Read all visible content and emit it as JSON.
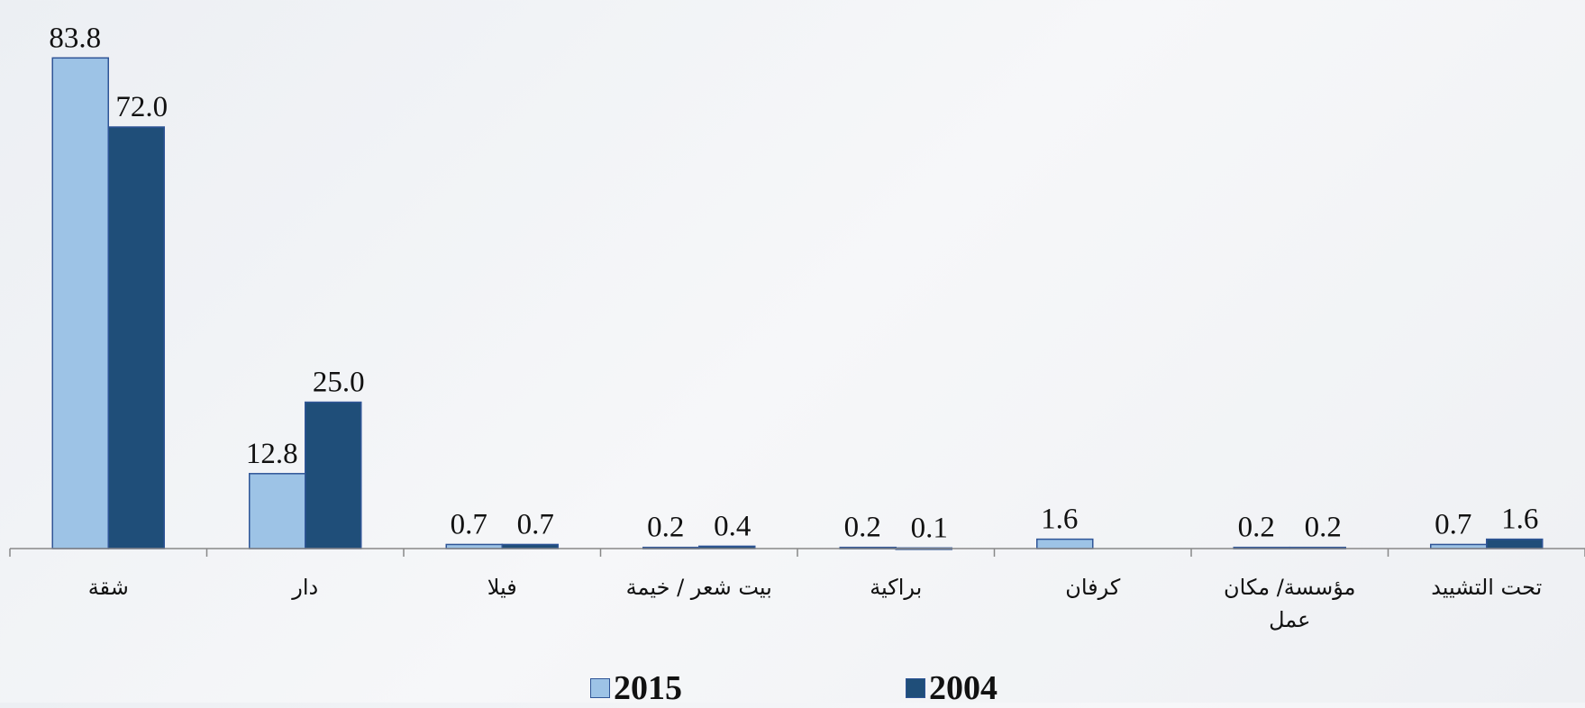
{
  "chart_data": {
    "type": "bar",
    "categories": [
      "شقة",
      "دار",
      "فيلا",
      "بيت شعر / خيمة",
      "براكية",
      "كرفان",
      "مؤسسة/ مكان عمل",
      "تحت التشييد"
    ],
    "series": [
      {
        "name": "2015",
        "color": "#9dc3e6",
        "values": [
          83.8,
          12.8,
          0.7,
          0.2,
          0.2,
          1.6,
          0.2,
          0.7
        ],
        "value_labels": [
          "83.8",
          "12.8",
          "0.7",
          "0.2",
          "0.2",
          "1.6",
          "0.2",
          "0.7"
        ]
      },
      {
        "name": "2004",
        "color": "#1f4e79",
        "values": [
          72.0,
          25.0,
          0.7,
          0.4,
          0.1,
          null,
          0.2,
          1.6
        ],
        "value_labels": [
          "72.0",
          "25.0",
          "0.7",
          "0.4",
          "0.1",
          null,
          "0.2",
          "1.6"
        ]
      }
    ],
    "ylim": [
      0,
      90
    ]
  }
}
